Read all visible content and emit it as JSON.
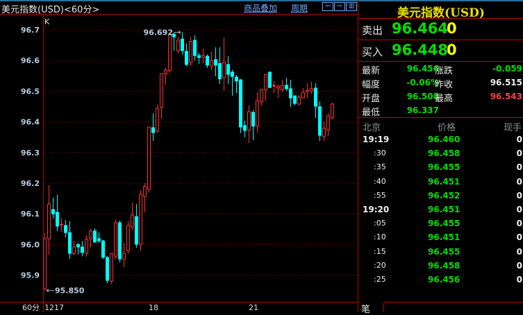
{
  "header": {
    "title": "美元指数(USD)<60分>",
    "overlay_link": "商品叠加",
    "period_link": "周期",
    "nav_icons": [
      "arrow-left-icon",
      "arrow-right-icon",
      "panel-toggle-icon"
    ]
  },
  "colors": {
    "up": "#ff3232",
    "down": "#00ffff",
    "grid": "#8b0000",
    "accent": "#c00000"
  },
  "chart_data": {
    "type": "candlestick",
    "label": "K",
    "period_label": "60分",
    "ylim": [
      95.85,
      96.73
    ],
    "yticks": [
      "96.7",
      "96.6",
      "96.5",
      "96.4",
      "96.3",
      "96.2",
      "96.1",
      "96.0",
      "95.9"
    ],
    "grid": true,
    "xticks": [
      {
        "index": 0,
        "label": "1217"
      },
      {
        "index": 25,
        "label": "18"
      },
      {
        "index": 49,
        "label": "21"
      }
    ],
    "high_label": {
      "index": 33,
      "value": "96.692"
    },
    "low_label": {
      "index": 0,
      "value": "95.850"
    },
    "ohlc": [
      [
        95.856,
        96.037,
        95.85,
        96.019
      ],
      [
        96.019,
        96.193,
        95.967,
        96.132
      ],
      [
        96.114,
        96.153,
        96.085,
        96.1
      ],
      [
        96.105,
        96.162,
        96.044,
        96.06
      ],
      [
        96.064,
        96.087,
        96.042,
        96.066
      ],
      [
        96.062,
        96.08,
        96.023,
        96.039
      ],
      [
        96.039,
        96.076,
        95.953,
        95.971
      ],
      [
        95.971,
        96.012,
        95.965,
        95.992
      ],
      [
        96.0,
        96.005,
        95.967,
        95.992
      ],
      [
        95.992,
        96.012,
        95.962,
        95.974
      ],
      [
        95.971,
        96.03,
        95.96,
        96.017
      ],
      [
        96.019,
        96.051,
        95.99,
        96.044
      ],
      [
        96.044,
        96.053,
        96.005,
        96.008
      ],
      [
        96.019,
        96.039,
        96.005,
        96.012
      ],
      [
        96.012,
        96.015,
        95.953,
        95.958
      ],
      [
        95.958,
        95.962,
        95.874,
        95.883
      ],
      [
        95.881,
        95.971,
        95.872,
        95.971
      ],
      [
        95.962,
        96.082,
        95.953,
        96.071
      ],
      [
        96.071,
        96.078,
        95.942,
        95.953
      ],
      [
        95.953,
        96.005,
        95.926,
        95.971
      ],
      [
        95.98,
        96.077,
        95.97,
        96.062
      ],
      [
        96.057,
        96.137,
        96.046,
        96.096
      ],
      [
        96.091,
        96.132,
        95.99,
        96.001
      ],
      [
        96.001,
        96.177,
        95.98,
        96.164
      ],
      [
        96.157,
        96.2,
        96.105,
        96.189
      ],
      [
        96.18,
        96.383,
        96.17,
        96.383
      ],
      [
        96.381,
        96.428,
        96.338,
        96.365
      ],
      [
        96.37,
        96.456,
        96.365,
        96.444
      ],
      [
        96.447,
        96.557,
        96.41,
        96.557
      ],
      [
        96.557,
        96.576,
        96.521,
        96.569
      ],
      [
        96.567,
        96.684,
        96.56,
        96.684
      ],
      [
        96.686,
        96.69,
        96.632,
        96.677
      ],
      [
        96.632,
        96.677,
        96.623,
        96.666
      ],
      [
        96.67,
        96.692,
        96.619,
        96.632
      ],
      [
        96.63,
        96.655,
        96.582,
        96.587
      ],
      [
        96.593,
        96.677,
        96.582,
        96.662
      ],
      [
        96.666,
        96.682,
        96.6,
        96.616
      ],
      [
        96.616,
        96.625,
        96.589,
        96.61
      ],
      [
        96.61,
        96.639,
        96.59,
        96.616
      ],
      [
        96.614,
        96.62,
        96.576,
        96.585
      ],
      [
        96.582,
        96.63,
        96.568,
        96.6
      ],
      [
        96.603,
        96.643,
        96.548,
        96.585
      ],
      [
        96.59,
        96.643,
        96.523,
        96.54
      ],
      [
        96.544,
        96.675,
        96.503,
        96.594
      ],
      [
        96.587,
        96.614,
        96.523,
        96.555
      ],
      [
        96.562,
        96.57,
        96.485,
        96.548
      ],
      [
        96.546,
        96.553,
        96.494,
        96.533
      ],
      [
        96.537,
        96.54,
        96.363,
        96.383
      ],
      [
        96.388,
        96.404,
        96.35,
        96.372
      ],
      [
        96.374,
        96.453,
        96.331,
        96.433
      ],
      [
        96.431,
        96.438,
        96.34,
        96.386
      ],
      [
        96.386,
        96.496,
        96.365,
        96.469
      ],
      [
        96.465,
        96.508,
        96.453,
        96.506
      ],
      [
        96.505,
        96.555,
        96.469,
        96.555
      ],
      [
        96.562,
        96.564,
        96.51,
        96.512
      ],
      [
        96.517,
        96.533,
        96.494,
        96.519
      ],
      [
        96.51,
        96.521,
        96.478,
        96.515
      ],
      [
        96.505,
        96.537,
        96.499,
        96.519
      ],
      [
        96.519,
        96.544,
        96.501,
        96.508
      ],
      [
        96.508,
        96.537,
        96.449,
        96.478
      ],
      [
        96.485,
        96.485,
        96.453,
        96.46
      ],
      [
        96.458,
        96.488,
        96.453,
        96.481
      ],
      [
        96.478,
        96.51,
        96.478,
        96.496
      ],
      [
        96.499,
        96.526,
        96.478,
        96.503
      ],
      [
        96.501,
        96.531,
        96.492,
        96.508
      ],
      [
        96.51,
        96.526,
        96.413,
        96.451
      ],
      [
        96.449,
        96.467,
        96.338,
        96.356
      ],
      [
        96.352,
        96.401,
        96.338,
        96.379
      ],
      [
        96.374,
        96.428,
        96.354,
        96.419
      ],
      [
        96.413,
        96.462,
        96.408,
        96.458
      ]
    ]
  },
  "quote": {
    "title": "美元指数(USD)",
    "sell_label": "卖出",
    "sell_price": "96.464",
    "sell_vol": "0",
    "buy_label": "买入",
    "buy_price": "96.448",
    "buy_vol": "0",
    "stats": [
      {
        "label": "最新",
        "value": "96.456",
        "color": "#00e000"
      },
      {
        "label": "涨跌",
        "value": "-0.059",
        "color": "#00e000"
      },
      {
        "label": "幅度",
        "value": "-0.06%",
        "color": "#00e000"
      },
      {
        "label": "昨收",
        "value": "96.515",
        "color": "#f0f0f0"
      },
      {
        "label": "开盘",
        "value": "96.508",
        "color": "#00e000"
      },
      {
        "label": "最高",
        "value": "96.543",
        "color": "#ff4040"
      },
      {
        "label": "最低",
        "value": "96.337",
        "color": "#00e000"
      }
    ]
  },
  "ticks": {
    "headers": [
      "北京",
      "价格",
      "现手"
    ],
    "rows": [
      {
        "time": "19:19",
        "price": "96.460",
        "vol": "0",
        "major": true
      },
      {
        "time": ":30",
        "price": "96.458",
        "vol": "0"
      },
      {
        "time": ":35",
        "price": "96.455",
        "vol": "0"
      },
      {
        "time": ":40",
        "price": "96.451",
        "vol": "0"
      },
      {
        "time": ":55",
        "price": "96.452",
        "vol": "0"
      },
      {
        "time": "19:20",
        "price": "96.451",
        "vol": "0",
        "major": true
      },
      {
        "time": ":05",
        "price": "96.455",
        "vol": "0"
      },
      {
        "time": ":10",
        "price": "96.451",
        "vol": "0"
      },
      {
        "time": ":15",
        "price": "96.455",
        "vol": "0"
      },
      {
        "time": ":20",
        "price": "96.458",
        "vol": "0"
      },
      {
        "time": ":25",
        "price": "96.456",
        "vol": "0"
      }
    ],
    "tab": "笔"
  }
}
